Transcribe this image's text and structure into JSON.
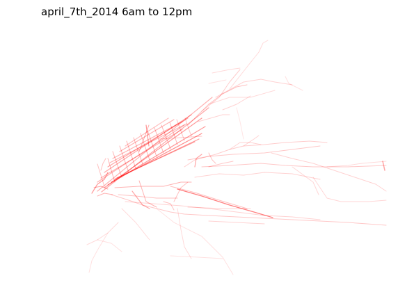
{
  "title": "april_7th_2014 6am to 12pm",
  "colors": {
    "track": "#ff0000",
    "background": "#ffffff"
  }
}
